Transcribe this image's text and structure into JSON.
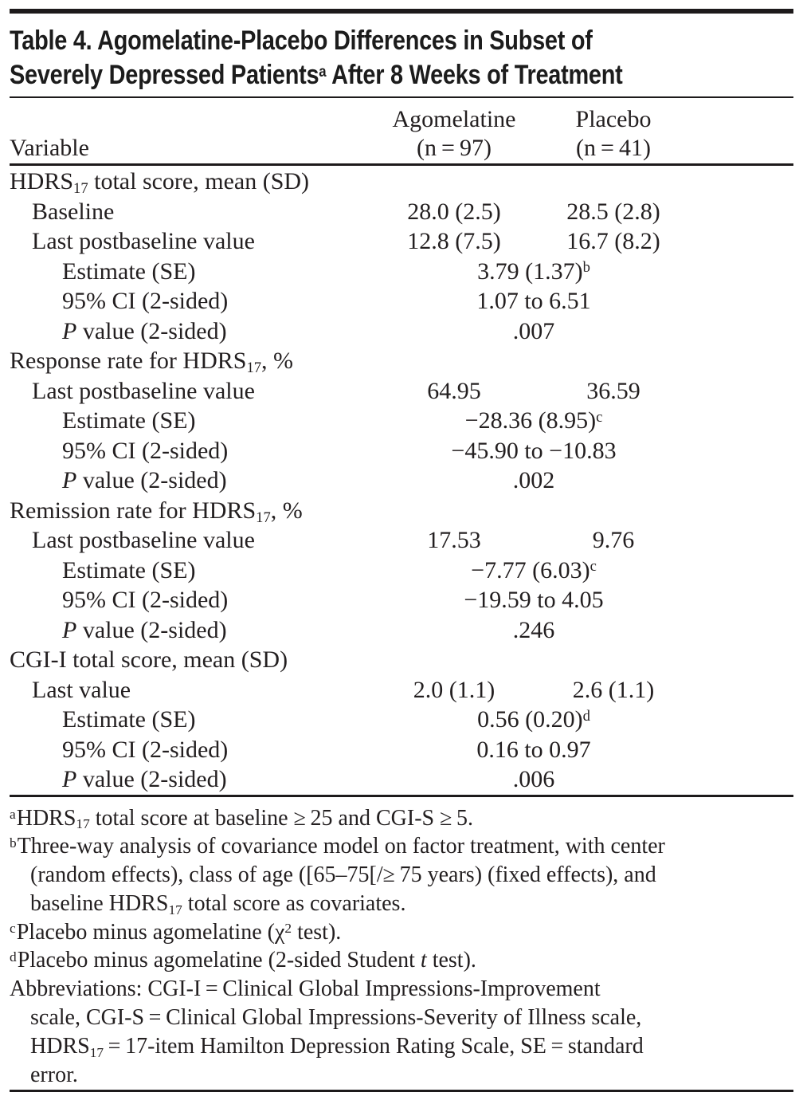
{
  "theme": {
    "background": "#ffffff",
    "text_color": "#231f20",
    "rule_color": "#1d1a1b"
  },
  "table": {
    "title_lines": [
      "Table 4. Agomelatine-Placebo Differences in Subset of",
      "Severely Depressed Patients^a^ After 8 Weeks of Treatment"
    ],
    "header": {
      "variable": "Variable",
      "col1": {
        "name": "Agomelatine",
        "n": "(n = 97)"
      },
      "col2": {
        "name": "Placebo",
        "n": "(n = 41)"
      }
    },
    "rows": [
      {
        "label": "HDRS~17~ total score, mean (SD)",
        "indent": 0
      },
      {
        "label": "Baseline",
        "indent": 1,
        "col1": "28.0 (2.5)",
        "col2": "28.5 (2.8)"
      },
      {
        "label": "Last postbaseline value",
        "indent": 1,
        "col1": "12.8 (7.5)",
        "col2": "16.7 (8.2)"
      },
      {
        "label": "Estimate (SE)",
        "indent": 2,
        "span": "3.79 (1.37)^b^"
      },
      {
        "label": "95% CI (2-sided)",
        "indent": 2,
        "span": "1.07 to 6.51"
      },
      {
        "label": "*P* value (2-sided)",
        "indent": 2,
        "span": ".007"
      },
      {
        "label": "Response rate for HDRS~17~, %",
        "indent": 0
      },
      {
        "label": "Last postbaseline value",
        "indent": 1,
        "col1": "64.95",
        "col2": "36.59"
      },
      {
        "label": "Estimate (SE)",
        "indent": 2,
        "span": "−28.36 (8.95)^c^"
      },
      {
        "label": "95% CI (2-sided)",
        "indent": 2,
        "span": "−45.90 to −10.83"
      },
      {
        "label": "*P* value (2-sided)",
        "indent": 2,
        "span": ".002"
      },
      {
        "label": "Remission rate for HDRS~17~, %",
        "indent": 0
      },
      {
        "label": "Last postbaseline value",
        "indent": 1,
        "col1": "17.53",
        "col2": "9.76"
      },
      {
        "label": "Estimate (SE)",
        "indent": 2,
        "span": "−7.77 (6.03)^c^"
      },
      {
        "label": "95% CI (2-sided)",
        "indent": 2,
        "span": "−19.59 to 4.05"
      },
      {
        "label": "*P* value (2-sided)",
        "indent": 2,
        "span": ".246"
      },
      {
        "label": "CGI-I total score, mean (SD)",
        "indent": 0
      },
      {
        "label": "Last value",
        "indent": 1,
        "col1": "2.0 (1.1)",
        "col2": "2.6 (1.1)"
      },
      {
        "label": "Estimate (SE)",
        "indent": 2,
        "span": "0.56 (0.20)^d^"
      },
      {
        "label": "95% CI (2-sided)",
        "indent": 2,
        "span": "0.16 to 0.97"
      },
      {
        "label": "*P* value (2-sided)",
        "indent": 2,
        "span": ".006"
      }
    ],
    "footnotes": [
      {
        "marker": "a",
        "lines": [
          "HDRS~17~ total score at baseline ≥ 25 and CGI-S ≥ 5."
        ]
      },
      {
        "marker": "b",
        "lines": [
          "Three-way analysis of covariance model on factor treatment, with center",
          "(random effects), class of age ([65–75[/≥ 75 years) (fixed effects), and",
          "baseline HDRS~17~ total score as covariates."
        ]
      },
      {
        "marker": "c",
        "lines": [
          "Placebo minus agomelatine (χ^2^ test)."
        ]
      },
      {
        "marker": "d",
        "lines": [
          "Placebo minus agomelatine (2-sided Student *t* test)."
        ]
      },
      {
        "marker": null,
        "lines": [
          "Abbreviations: CGI-I = Clinical Global Impressions-Improvement",
          "scale, CGI-S = Clinical Global Impressions-Severity of Illness scale,",
          "HDRS~17~ = 17-item Hamilton Depression Rating Scale, SE = standard",
          "error."
        ]
      }
    ]
  }
}
